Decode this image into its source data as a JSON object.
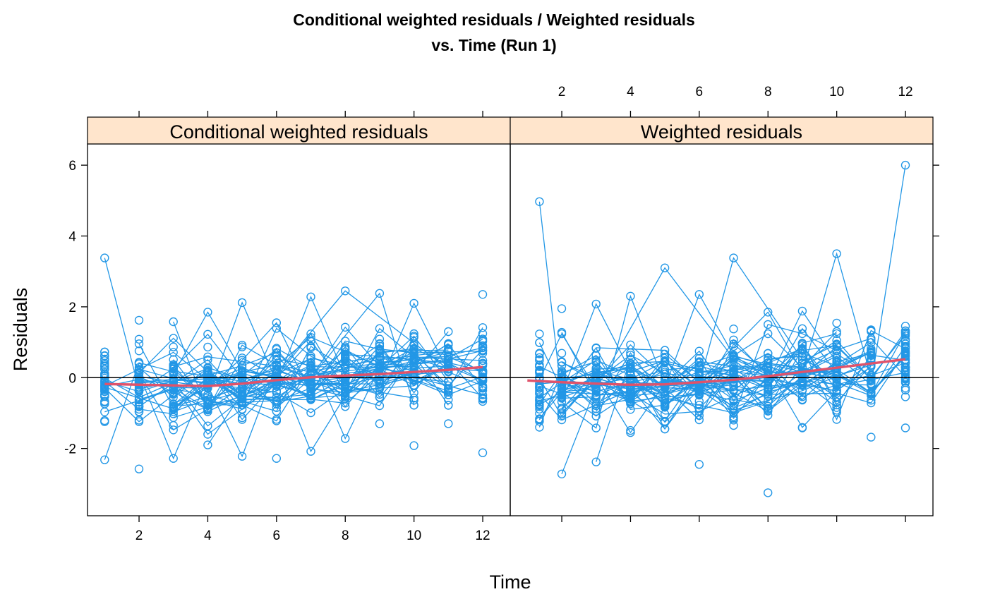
{
  "title_line1": "Conditional weighted residuals / Weighted residuals",
  "title_line2": "vs. Time (Run 1)",
  "colors": {
    "points": "#2297E6",
    "smooth": "#DF536B",
    "strip": "#FFE5CC",
    "frame": "#000000"
  },
  "chart_data": {
    "type": "scatter",
    "layout": "two panels side by side, shared axes, individual profiles connected by lines, loess smooth and y=0 reference line",
    "xlabel": "Time",
    "ylabel": "Residuals",
    "xlim": [
      0.5,
      12.8
    ],
    "ylim": [
      -3.9,
      6.6
    ],
    "x_ticks": [
      2,
      4,
      6,
      8,
      10,
      12
    ],
    "y_ticks": [
      -2,
      0,
      2,
      4,
      6
    ],
    "reference_line_y": 0,
    "panels": [
      {
        "strip_label": "Conditional weighted residuals",
        "time_points": [
          1,
          2,
          3,
          4,
          5,
          6,
          7,
          8,
          9,
          10,
          11,
          12
        ],
        "max_residual_by_time": [
          3.38,
          1.62,
          1.58,
          1.85,
          2.12,
          1.55,
          2.28,
          2.45,
          2.38,
          2.1,
          1.3,
          2.35
        ],
        "min_residual_by_time": [
          -2.32,
          -2.58,
          -2.28,
          -1.9,
          -2.22,
          -2.28,
          -2.08,
          -1.72,
          -1.3,
          -1.92,
          -1.3,
          -2.12
        ],
        "smooth_x": [
          1,
          2,
          3,
          4,
          5,
          6,
          7,
          8,
          9,
          10,
          11,
          12
        ],
        "smooth_y": [
          -0.18,
          -0.2,
          -0.22,
          -0.24,
          -0.17,
          -0.07,
          0.01,
          0.06,
          0.1,
          0.16,
          0.22,
          0.3
        ]
      },
      {
        "strip_label": "Weighted residuals",
        "time_points": [
          1,
          2,
          3,
          4,
          5,
          6,
          7,
          8,
          9,
          10,
          11,
          12
        ],
        "max_residual_by_time": [
          4.97,
          1.95,
          2.08,
          2.3,
          3.1,
          2.35,
          3.38,
          1.85,
          1.88,
          3.5,
          1.35,
          6.0
        ],
        "min_residual_by_time": [
          -1.4,
          -2.72,
          -2.38,
          -1.55,
          -1.45,
          -2.45,
          -1.35,
          -3.25,
          -1.42,
          -1.18,
          -1.68,
          -1.42
        ],
        "smooth_x": [
          1,
          2,
          3,
          4,
          5,
          6,
          7,
          8,
          9,
          10,
          11,
          12
        ],
        "smooth_y": [
          -0.08,
          -0.13,
          -0.17,
          -0.2,
          -0.19,
          -0.13,
          -0.06,
          0.04,
          0.16,
          0.28,
          0.4,
          0.52
        ]
      }
    ]
  }
}
